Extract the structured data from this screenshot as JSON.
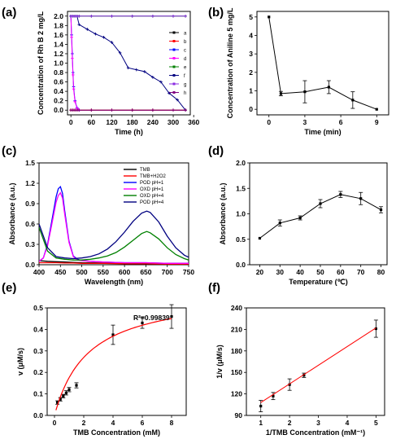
{
  "panels": [
    "(a)",
    "(b)",
    "(c)",
    "(d)",
    "(e)",
    "(f)"
  ],
  "chart_data": [
    {
      "id": "a",
      "type": "line",
      "xlabel": "Time (h)",
      "ylabel": "Concentration of Rh B 2 mg/L",
      "xlim": [
        -10,
        350
      ],
      "ylim": [
        -0.1,
        2.1
      ],
      "xticks": [
        "0",
        "60",
        "120",
        "180",
        "240",
        "300",
        "360"
      ],
      "yticks": [
        "0.0",
        "0.2",
        "0.4",
        "0.6",
        "0.8",
        "1.0",
        "1.2",
        "1.4",
        "1.6",
        "1.8",
        "2.0"
      ],
      "legend_position": "right",
      "series": [
        {
          "name": "a",
          "color": "#000000",
          "x": [
            0,
            6,
            12,
            18,
            24,
            60,
            120,
            180,
            240,
            300,
            336
          ],
          "y": [
            0,
            0,
            0,
            0,
            0,
            0,
            0,
            0,
            0,
            0,
            0
          ]
        },
        {
          "name": "b",
          "color": "#ff0000",
          "x": [
            0,
            6,
            12,
            18,
            24,
            60,
            120,
            180,
            240,
            300,
            336
          ],
          "y": [
            0,
            0,
            0,
            0,
            0,
            0,
            0,
            0,
            0,
            0,
            0
          ]
        },
        {
          "name": "c",
          "color": "#0000ff",
          "x": [
            0,
            2,
            4,
            6,
            8,
            12,
            18,
            24
          ],
          "y": [
            2.0,
            1.6,
            1.2,
            0.8,
            0.5,
            0.2,
            0.05,
            0.0
          ]
        },
        {
          "name": "d",
          "color": "#ff00ff",
          "x": [
            0,
            2,
            4,
            6,
            8,
            12,
            18,
            24
          ],
          "y": [
            2.0,
            1.55,
            1.1,
            0.75,
            0.45,
            0.18,
            0.04,
            0.0
          ]
        },
        {
          "name": "e",
          "color": "#008000",
          "x": [
            0,
            6,
            12,
            18,
            24,
            60,
            120,
            180,
            240,
            300,
            336
          ],
          "y": [
            2.0,
            2.0,
            2.0,
            2.0,
            2.0,
            2.0,
            2.0,
            2.0,
            2.0,
            2.0,
            2.0
          ]
        },
        {
          "name": "f",
          "color": "#000080",
          "x": [
            0,
            6,
            12,
            18,
            24,
            48,
            72,
            96,
            120,
            144,
            168,
            192,
            216,
            240,
            264,
            288,
            312,
            336
          ],
          "y": [
            2.0,
            2.0,
            2.0,
            2.0,
            1.82,
            1.72,
            1.62,
            1.55,
            1.44,
            1.22,
            0.9,
            0.86,
            0.82,
            0.7,
            0.6,
            0.36,
            0.22,
            0.0
          ]
        },
        {
          "name": "g",
          "color": "#8a2be2",
          "x": [
            0,
            6,
            12,
            18,
            24,
            60,
            120,
            180,
            240,
            300,
            336
          ],
          "y": [
            2.0,
            2.0,
            2.0,
            2.0,
            2.0,
            2.0,
            2.0,
            2.0,
            2.0,
            2.0,
            2.0
          ]
        },
        {
          "name": "h",
          "color": "#800080",
          "x": [
            0,
            6,
            12,
            18,
            24,
            60,
            120,
            180,
            240,
            300,
            336
          ],
          "y": [
            0,
            0,
            0,
            0,
            0,
            0,
            0,
            0,
            0,
            0,
            0
          ]
        }
      ]
    },
    {
      "id": "b",
      "type": "line",
      "xlabel": "Time (min)",
      "ylabel": "Concentration of Aniline 5 mg/L",
      "xlim": [
        -1,
        10
      ],
      "ylim": [
        -0.3,
        5.3
      ],
      "xticks": [
        "0",
        "3",
        "6",
        "9"
      ],
      "yticks": [
        "0",
        "1",
        "2",
        "3",
        "4",
        "5"
      ],
      "series": [
        {
          "name": "",
          "color": "#000000",
          "x": [
            0,
            1,
            3,
            5,
            7,
            9
          ],
          "y": [
            5.0,
            0.85,
            0.95,
            1.2,
            0.5,
            0.0
          ],
          "err": [
            0,
            0.12,
            0.6,
            0.35,
            0.45,
            0
          ]
        }
      ]
    },
    {
      "id": "c",
      "type": "line",
      "xlabel": "Wavelength (nm)",
      "ylabel": "Absorbance (a.u.)",
      "xlim": [
        400,
        750
      ],
      "ylim": [
        0,
        1.5
      ],
      "xticks": [
        "400",
        "450",
        "500",
        "550",
        "600",
        "650",
        "700",
        "750"
      ],
      "yticks": [
        "0.0",
        "0.3",
        "0.6",
        "0.9",
        "1.2",
        "1.5"
      ],
      "legend_position": "top-right",
      "series": [
        {
          "name": "TMB",
          "color": "#000000",
          "x": [
            400,
            420,
            440,
            460,
            480,
            500,
            550,
            600,
            650,
            700,
            750
          ],
          "y": [
            0.06,
            0.05,
            0.045,
            0.04,
            0.035,
            0.03,
            0.025,
            0.02,
            0.02,
            0.02,
            0.02
          ]
        },
        {
          "name": "TMB+H2O2",
          "color": "#ff0000",
          "x": [
            400,
            420,
            440,
            460,
            480,
            500,
            550,
            600,
            650,
            700,
            750
          ],
          "y": [
            0.03,
            0.03,
            0.03,
            0.025,
            0.025,
            0.02,
            0.02,
            0.015,
            0.015,
            0.01,
            0.01
          ]
        },
        {
          "name": "POD pH=1",
          "color": "#0000ff",
          "x": [
            400,
            410,
            420,
            430,
            440,
            445,
            450,
            455,
            460,
            470,
            480,
            490,
            500,
            520,
            550,
            600,
            650,
            700,
            750
          ],
          "y": [
            0.05,
            0.1,
            0.3,
            0.65,
            1.0,
            1.12,
            1.15,
            1.05,
            0.8,
            0.35,
            0.13,
            0.08,
            0.06,
            0.05,
            0.04,
            0.03,
            0.03,
            0.02,
            0.02
          ]
        },
        {
          "name": "OXD pH=1",
          "color": "#ff00ff",
          "x": [
            400,
            410,
            420,
            430,
            440,
            445,
            450,
            455,
            460,
            470,
            480,
            490,
            500,
            520,
            550,
            600,
            650,
            700,
            750
          ],
          "y": [
            0.05,
            0.1,
            0.28,
            0.6,
            0.92,
            1.02,
            1.06,
            0.98,
            0.75,
            0.33,
            0.12,
            0.07,
            0.06,
            0.05,
            0.04,
            0.03,
            0.03,
            0.02,
            0.02
          ]
        },
        {
          "name": "OXD pH=4",
          "color": "#008000",
          "x": [
            400,
            420,
            440,
            460,
            480,
            500,
            520,
            540,
            560,
            580,
            600,
            620,
            640,
            652,
            660,
            680,
            700,
            720,
            740,
            750
          ],
          "y": [
            0.55,
            0.2,
            0.1,
            0.08,
            0.07,
            0.07,
            0.08,
            0.1,
            0.13,
            0.18,
            0.26,
            0.36,
            0.46,
            0.49,
            0.47,
            0.38,
            0.25,
            0.15,
            0.09,
            0.07
          ]
        },
        {
          "name": "POD pH=4",
          "color": "#000080",
          "x": [
            400,
            420,
            440,
            460,
            480,
            500,
            520,
            540,
            560,
            580,
            600,
            620,
            640,
            652,
            660,
            680,
            700,
            720,
            740,
            750
          ],
          "y": [
            0.6,
            0.25,
            0.12,
            0.1,
            0.09,
            0.1,
            0.12,
            0.16,
            0.23,
            0.34,
            0.48,
            0.64,
            0.76,
            0.79,
            0.77,
            0.63,
            0.42,
            0.25,
            0.14,
            0.11
          ]
        }
      ]
    },
    {
      "id": "d",
      "type": "line",
      "xlabel": "Temperature (℃)",
      "ylabel": "Absorbance (a.u.)",
      "xlim": [
        15,
        83
      ],
      "ylim": [
        0,
        2.0
      ],
      "xticks": [
        "20",
        "30",
        "40",
        "50",
        "60",
        "70",
        "80"
      ],
      "yticks": [
        "0.0",
        "0.5",
        "1.0",
        "1.5",
        "2.0"
      ],
      "series": [
        {
          "name": "",
          "color": "#000000",
          "x": [
            20,
            30,
            40,
            50,
            60,
            70,
            80
          ],
          "y": [
            0.52,
            0.82,
            0.92,
            1.2,
            1.38,
            1.3,
            1.08
          ],
          "err": [
            0,
            0.06,
            0.04,
            0.08,
            0.06,
            0.12,
            0.06
          ]
        }
      ]
    },
    {
      "id": "e",
      "type": "scatter",
      "xlabel": "TMB Concentration (mM)",
      "ylabel": "v (μM/s)",
      "xlim": [
        -0.5,
        9
      ],
      "ylim": [
        0,
        0.5
      ],
      "xticks": [
        "0",
        "2",
        "4",
        "6",
        "8"
      ],
      "yticks": [
        "0.0",
        "0.1",
        "0.2",
        "0.3",
        "0.4",
        "0.5"
      ],
      "annotation": "R²=0.99839",
      "series": [
        {
          "name": "",
          "color": "#000000",
          "x": [
            0.2,
            0.4,
            0.6,
            0.8,
            1.0,
            1.5,
            4.0,
            6.0,
            8.0
          ],
          "y": [
            0.06,
            0.075,
            0.09,
            0.105,
            0.12,
            0.14,
            0.375,
            0.43,
            0.46
          ],
          "err": [
            0.008,
            0.008,
            0.008,
            0.01,
            0.01,
            0.012,
            0.045,
            0.025,
            0.055
          ]
        },
        {
          "name": "",
          "color": "#ff0000",
          "fit": "michaelis-menten",
          "vmax": 0.58,
          "km": 2.3
        }
      ]
    },
    {
      "id": "f",
      "type": "scatter",
      "xlabel": "1/TMB Concentration (mM⁻¹)",
      "ylabel": "1/v (μM/s)",
      "xlim": [
        0.5,
        5.3
      ],
      "ylim": [
        90,
        240
      ],
      "xticks": [
        "1",
        "2",
        "3",
        "4",
        "5"
      ],
      "yticks": [
        "90",
        "120",
        "150",
        "180",
        "210",
        "240"
      ],
      "series": [
        {
          "name": "",
          "color": "#000000",
          "x": [
            1.0,
            1.43,
            2.0,
            2.5,
            5.0
          ],
          "y": [
            103,
            117,
            133,
            146,
            211
          ],
          "err": [
            8,
            5,
            8,
            3,
            12
          ]
        },
        {
          "name": "",
          "color": "#ff0000",
          "fit": "linear",
          "x": [
            1.0,
            5.0
          ],
          "y": [
            108,
            212
          ]
        }
      ]
    }
  ]
}
